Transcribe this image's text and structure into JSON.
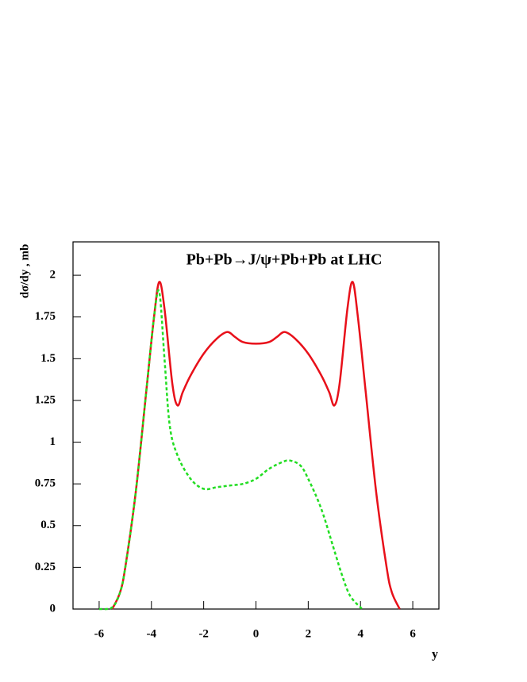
{
  "chart_data": {
    "type": "line",
    "title": "Pb+Pb→J/ψ+Pb+Pb at LHC",
    "x_label": "y",
    "y_label": "dσ/dy , mb",
    "xlim": [
      -7,
      7
    ],
    "xticks": [
      -6,
      -4,
      -2,
      0,
      2,
      4,
      6
    ],
    "ylim": [
      0,
      2.2
    ],
    "yticks": [
      0,
      0.25,
      0.5,
      0.75,
      1,
      1.25,
      1.5,
      1.75,
      2
    ],
    "series": [
      {
        "color": "#e8101a",
        "dash": false,
        "x": [
          -5.5,
          -5.2,
          -5,
          -4.6,
          -4.2,
          -3.9,
          -3.7,
          -3.5,
          -3.2,
          -3,
          -2.8,
          -2.5,
          -2,
          -1.5,
          -1.1,
          -0.8,
          -0.5,
          0,
          0.5,
          0.8,
          1.1,
          1.5,
          2,
          2.5,
          2.8,
          3,
          3.2,
          3.5,
          3.7,
          3.9,
          4.2,
          4.6,
          5,
          5.2,
          5.5
        ],
        "values": [
          0,
          0.1,
          0.25,
          0.7,
          1.3,
          1.75,
          1.96,
          1.8,
          1.35,
          1.22,
          1.3,
          1.4,
          1.53,
          1.62,
          1.66,
          1.63,
          1.6,
          1.59,
          1.6,
          1.63,
          1.66,
          1.62,
          1.53,
          1.4,
          1.3,
          1.22,
          1.35,
          1.8,
          1.96,
          1.75,
          1.3,
          0.7,
          0.25,
          0.1,
          0
        ]
      },
      {
        "color": "#22dd22",
        "dash": true,
        "x": [
          -6,
          -5.5,
          -5.2,
          -5,
          -4.6,
          -4.2,
          -3.9,
          -3.7,
          -3.5,
          -3.3,
          -3,
          -2.5,
          -2,
          -1.5,
          -1,
          -0.5,
          0,
          0.5,
          1,
          1.3,
          1.7,
          2,
          2.5,
          3,
          3.3,
          3.6,
          4,
          4.1
        ],
        "values": [
          0,
          0.01,
          0.1,
          0.25,
          0.7,
          1.3,
          1.75,
          1.9,
          1.5,
          1.1,
          0.92,
          0.78,
          0.72,
          0.73,
          0.74,
          0.75,
          0.78,
          0.84,
          0.88,
          0.89,
          0.86,
          0.78,
          0.6,
          0.35,
          0.2,
          0.08,
          0.01,
          0
        ]
      }
    ]
  }
}
